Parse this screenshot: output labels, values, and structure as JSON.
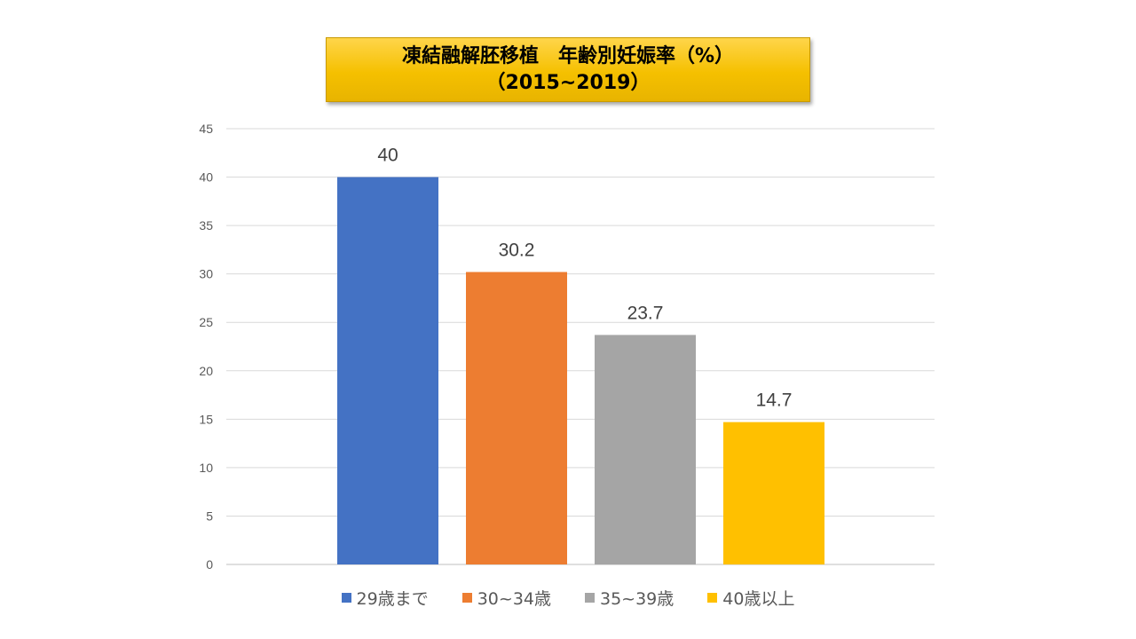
{
  "chart_data": {
    "type": "bar",
    "title_lines": [
      "凍結融解胚移植　年齢別妊娠率（%）",
      "（2015~2019）"
    ],
    "categories": [
      "29歳まで",
      "30~34歳",
      "35~39歳",
      "40歳以上"
    ],
    "values": [
      40,
      30.2,
      23.7,
      14.7
    ],
    "data_labels": [
      "40",
      "30.2",
      "23.7",
      "14.7"
    ],
    "colors": [
      "#4472C4",
      "#ED7D31",
      "#A5A5A5",
      "#FFC000"
    ],
    "ylim": [
      0,
      45
    ],
    "yticks": [
      0,
      5,
      10,
      15,
      20,
      25,
      30,
      35,
      40,
      45
    ],
    "grid": true,
    "legend_position": "bottom",
    "xlabel": "",
    "ylabel": ""
  }
}
